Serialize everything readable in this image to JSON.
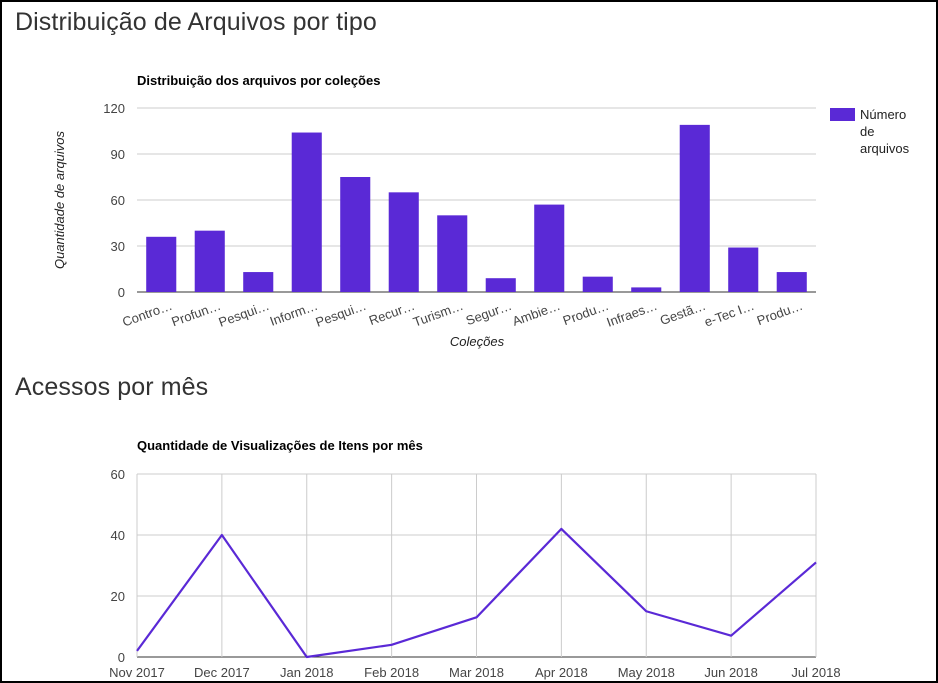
{
  "sections": {
    "files_title": "Distribuição de Arquivos por tipo",
    "access_title": "Acessos por mês"
  },
  "chart_data": [
    {
      "type": "bar",
      "title": "Distribuição dos arquivos por coleções",
      "xlabel": "Coleções",
      "ylabel": "Quantidade de arquivos",
      "categories": [
        "Contro…",
        "Profun…",
        "Pesqui…",
        "Inform…",
        "Pesqui…",
        "Recur…",
        "Turism…",
        "Segur…",
        "Ambie…",
        "Produ…",
        "Infraes…",
        "Gestã…",
        "e-Tec I…",
        "Produ…"
      ],
      "series": [
        {
          "name": "Número de arquivos",
          "values": [
            36,
            40,
            13,
            104,
            75,
            65,
            50,
            9,
            57,
            10,
            3,
            109,
            29,
            13
          ],
          "color": "#5a29d6"
        }
      ],
      "legend_lines": [
        "Número",
        "de",
        "arquivos"
      ],
      "ylim": [
        0,
        120
      ],
      "yticks": [
        0,
        30,
        60,
        90,
        120
      ],
      "grid": true,
      "legend_position": "right"
    },
    {
      "type": "line",
      "title": "Quantidade de Visualizações de Itens por mês",
      "xlabel": "",
      "ylabel": "",
      "categories": [
        "Nov 2017",
        "Dec 2017",
        "Jan 2018",
        "Feb 2018",
        "Mar 2018",
        "Apr 2018",
        "May 2018",
        "Jun 2018",
        "Jul 2018"
      ],
      "series": [
        {
          "values": [
            2,
            40,
            0,
            4,
            13,
            42,
            15,
            7,
            31
          ],
          "color": "#5a29d6"
        }
      ],
      "ylim": [
        0,
        60
      ],
      "yticks": [
        0,
        20,
        40,
        60
      ],
      "grid": true
    }
  ]
}
